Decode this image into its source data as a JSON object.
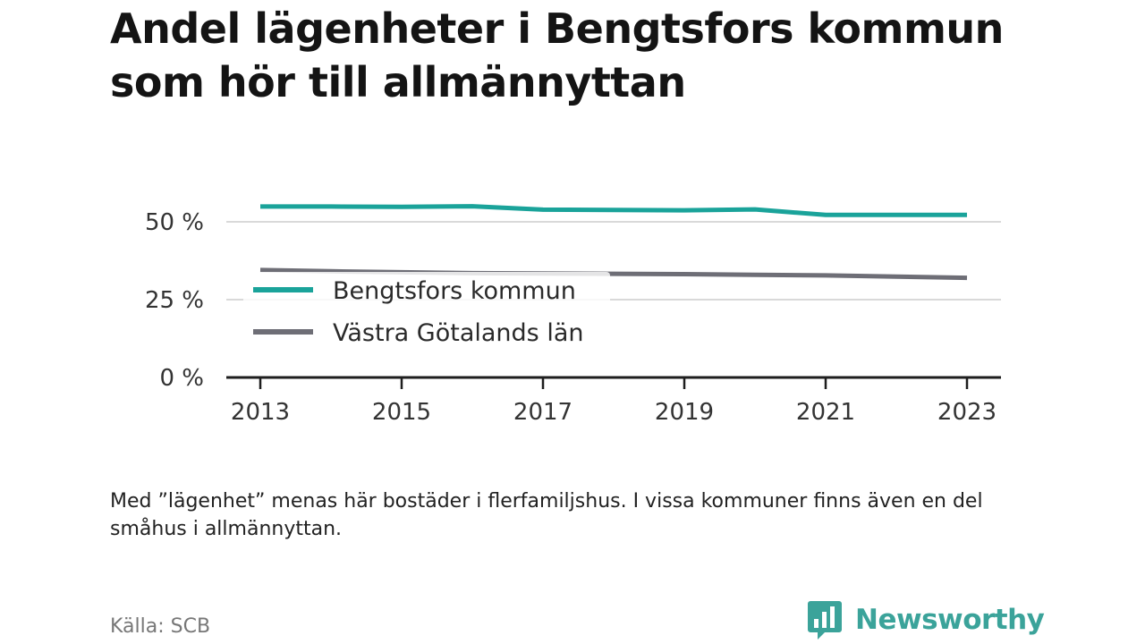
{
  "header": {
    "title": "Andel lägenheter i Bengtsfors kommun som hör till allmännyttan"
  },
  "chart_data": {
    "type": "line",
    "x": [
      2013,
      2014,
      2015,
      2016,
      2017,
      2018,
      2019,
      2020,
      2021,
      2022,
      2023
    ],
    "series": [
      {
        "name": "Bengtsfors kommun",
        "color": "#1aa39a",
        "values": [
          54.9,
          54.9,
          54.8,
          55.0,
          53.9,
          53.8,
          53.7,
          54.0,
          52.2,
          52.2,
          52.2
        ]
      },
      {
        "name": "Västra Götalands län",
        "color": "#6e6e76",
        "values": [
          34.5,
          34.1,
          33.8,
          33.5,
          33.4,
          33.3,
          33.2,
          33.0,
          32.8,
          32.4,
          32.0
        ]
      }
    ],
    "yticks": [
      {
        "value": 0,
        "label": "0 %"
      },
      {
        "value": 25,
        "label": "25 %"
      },
      {
        "value": 50,
        "label": "50 %"
      }
    ],
    "xticks": [
      {
        "value": 2013,
        "label": "2013"
      },
      {
        "value": 2015,
        "label": "2015"
      },
      {
        "value": 2017,
        "label": "2017"
      },
      {
        "value": 2019,
        "label": "2019"
      },
      {
        "value": 2021,
        "label": "2021"
      },
      {
        "value": 2023,
        "label": "2023"
      }
    ],
    "xlim": [
      2013,
      2023
    ],
    "ylim": [
      0,
      50
    ],
    "grid": true,
    "legend_position": "bottom-left"
  },
  "footer": {
    "note": "Med ”lägenhet” menas här bostäder i flerfamiljshus. I vissa kommuner finns även en del småhus i allmännyttan.",
    "source": "Källa: SCB",
    "brand": "Newsworthy",
    "brand_icon": "newsworthy-logo-icon",
    "brand_color": "#3ba39a"
  }
}
